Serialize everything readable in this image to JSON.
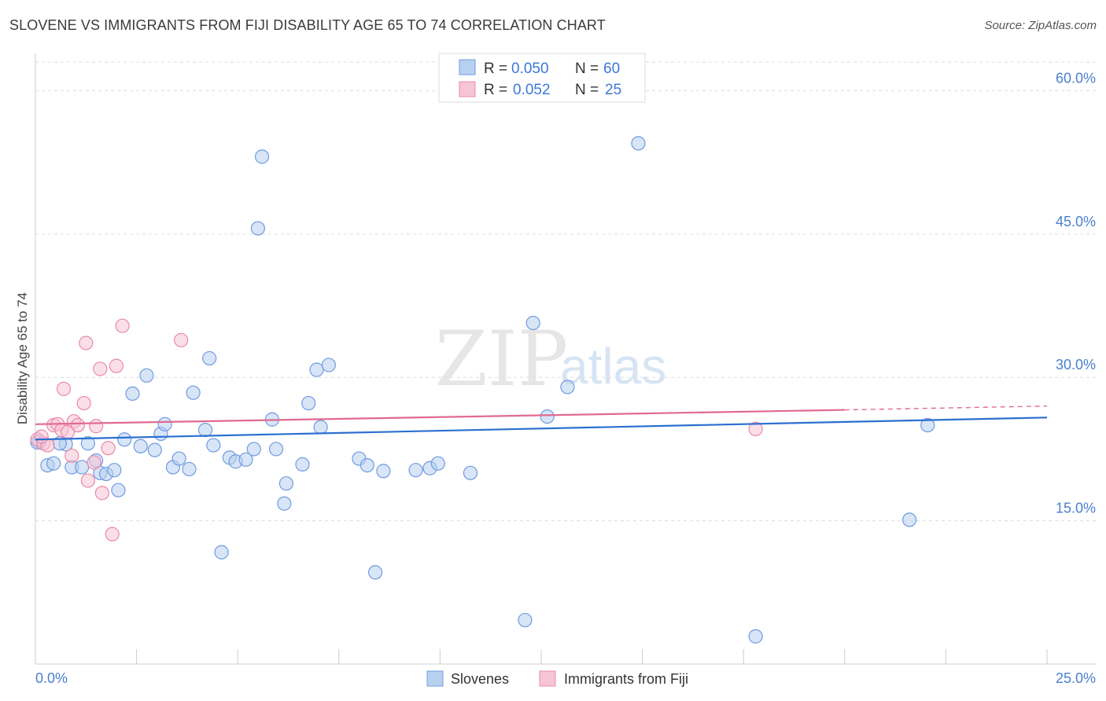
{
  "title": "SLOVENE VS IMMIGRANTS FROM FIJI DISABILITY AGE 65 TO 74 CORRELATION CHART",
  "source": "Source: ZipAtlas.com",
  "watermark": {
    "zip": "ZIP",
    "atlas": "atlas"
  },
  "colors": {
    "blue_fill": "#b8d0f0",
    "blue_stroke": "#6f9be0",
    "blue_line": "#2b6fd0",
    "pink_fill": "#f7c5d5",
    "pink_stroke": "#e98aa8",
    "pink_line": "#e06a92",
    "grid": "#dddddd",
    "tick_text": "#4a7fd0"
  },
  "legend": {
    "rows": [
      {
        "r_label": "R =",
        "r_value": "0.050",
        "n_label": "N =",
        "n_value": "60"
      },
      {
        "r_label": "R =",
        "r_value": "0.052",
        "n_label": "N =",
        "n_value": "25"
      }
    ]
  },
  "chart_data": {
    "type": "scatter",
    "title": "SLOVENE VS IMMIGRANTS FROM FIJI DISABILITY AGE 65 TO 74 CORRELATION CHART",
    "xlabel": "",
    "ylabel": "Disability Age 65 to 74",
    "xlim": [
      0,
      25
    ],
    "ylim": [
      0,
      63
    ],
    "x_tick_labels": [
      "0.0%",
      "25.0%"
    ],
    "y_ticks": [
      15,
      30,
      45,
      60
    ],
    "y_tick_labels": [
      "15.0%",
      "30.0%",
      "45.0%",
      "60.0%"
    ],
    "grid": true,
    "series": [
      {
        "name": "Slovenes",
        "color": "blue",
        "r": 0.05,
        "n": 60,
        "trend": {
          "x0": 0,
          "y0": 23.5,
          "x1": 25,
          "y1": 25.8
        },
        "points": [
          [
            0.1,
            23.3
          ],
          [
            0.3,
            20.8
          ],
          [
            0.45,
            21.0
          ],
          [
            0.75,
            23.0
          ],
          [
            0.6,
            23.1
          ],
          [
            0.9,
            20.6
          ],
          [
            1.15,
            20.6
          ],
          [
            1.3,
            23.1
          ],
          [
            1.5,
            21.3
          ],
          [
            1.6,
            20.0
          ],
          [
            1.75,
            19.9
          ],
          [
            1.95,
            20.3
          ],
          [
            2.05,
            18.2
          ],
          [
            2.2,
            23.5
          ],
          [
            2.4,
            28.3
          ],
          [
            2.6,
            22.8
          ],
          [
            2.75,
            30.2
          ],
          [
            2.95,
            22.4
          ],
          [
            3.1,
            24.1
          ],
          [
            3.2,
            25.1
          ],
          [
            3.4,
            20.6
          ],
          [
            3.55,
            21.5
          ],
          [
            3.8,
            20.4
          ],
          [
            3.9,
            28.4
          ],
          [
            4.2,
            24.5
          ],
          [
            4.3,
            32.0
          ],
          [
            4.4,
            22.9
          ],
          [
            4.8,
            21.6
          ],
          [
            4.95,
            21.2
          ],
          [
            4.6,
            11.7
          ],
          [
            5.2,
            21.4
          ],
          [
            5.4,
            22.5
          ],
          [
            5.5,
            45.6
          ],
          [
            5.6,
            53.1
          ],
          [
            5.85,
            25.6
          ],
          [
            5.95,
            22.5
          ],
          [
            6.2,
            18.9
          ],
          [
            6.15,
            16.8
          ],
          [
            6.6,
            20.9
          ],
          [
            6.75,
            27.3
          ],
          [
            6.95,
            30.8
          ],
          [
            7.05,
            24.8
          ],
          [
            7.25,
            31.3
          ],
          [
            8.0,
            21.5
          ],
          [
            8.2,
            20.8
          ],
          [
            8.4,
            9.6
          ],
          [
            8.6,
            20.2
          ],
          [
            9.4,
            20.3
          ],
          [
            9.75,
            20.5
          ],
          [
            9.95,
            21.0
          ],
          [
            10.75,
            20.0
          ],
          [
            12.1,
            4.6
          ],
          [
            12.3,
            35.7
          ],
          [
            12.65,
            25.9
          ],
          [
            13.15,
            29.0
          ],
          [
            14.9,
            54.5
          ],
          [
            17.8,
            2.9
          ],
          [
            21.6,
            15.1
          ],
          [
            22.05,
            25.0
          ],
          [
            0.05,
            23.2
          ]
        ]
      },
      {
        "name": "Immigrants from Fiji",
        "color": "pink",
        "r": 0.052,
        "n": 25,
        "trend": {
          "x0": 0,
          "y0": 25.1,
          "x1": 20,
          "y1": 26.6,
          "dash_to_x": 25,
          "dash_to_y": 27.0
        },
        "points": [
          [
            0.05,
            23.5
          ],
          [
            0.2,
            23.1
          ],
          [
            0.3,
            22.9
          ],
          [
            0.45,
            25.0
          ],
          [
            0.55,
            25.1
          ],
          [
            0.65,
            24.5
          ],
          [
            0.7,
            28.8
          ],
          [
            0.8,
            24.3
          ],
          [
            0.9,
            21.8
          ],
          [
            0.95,
            25.4
          ],
          [
            1.05,
            25.0
          ],
          [
            1.2,
            27.3
          ],
          [
            1.25,
            33.6
          ],
          [
            1.3,
            19.2
          ],
          [
            1.45,
            21.1
          ],
          [
            1.5,
            24.9
          ],
          [
            1.6,
            30.9
          ],
          [
            1.65,
            17.9
          ],
          [
            1.8,
            22.6
          ],
          [
            1.9,
            13.6
          ],
          [
            2.0,
            31.2
          ],
          [
            2.15,
            35.4
          ],
          [
            3.6,
            33.9
          ],
          [
            17.8,
            24.6
          ],
          [
            0.15,
            23.8
          ]
        ]
      }
    ]
  }
}
